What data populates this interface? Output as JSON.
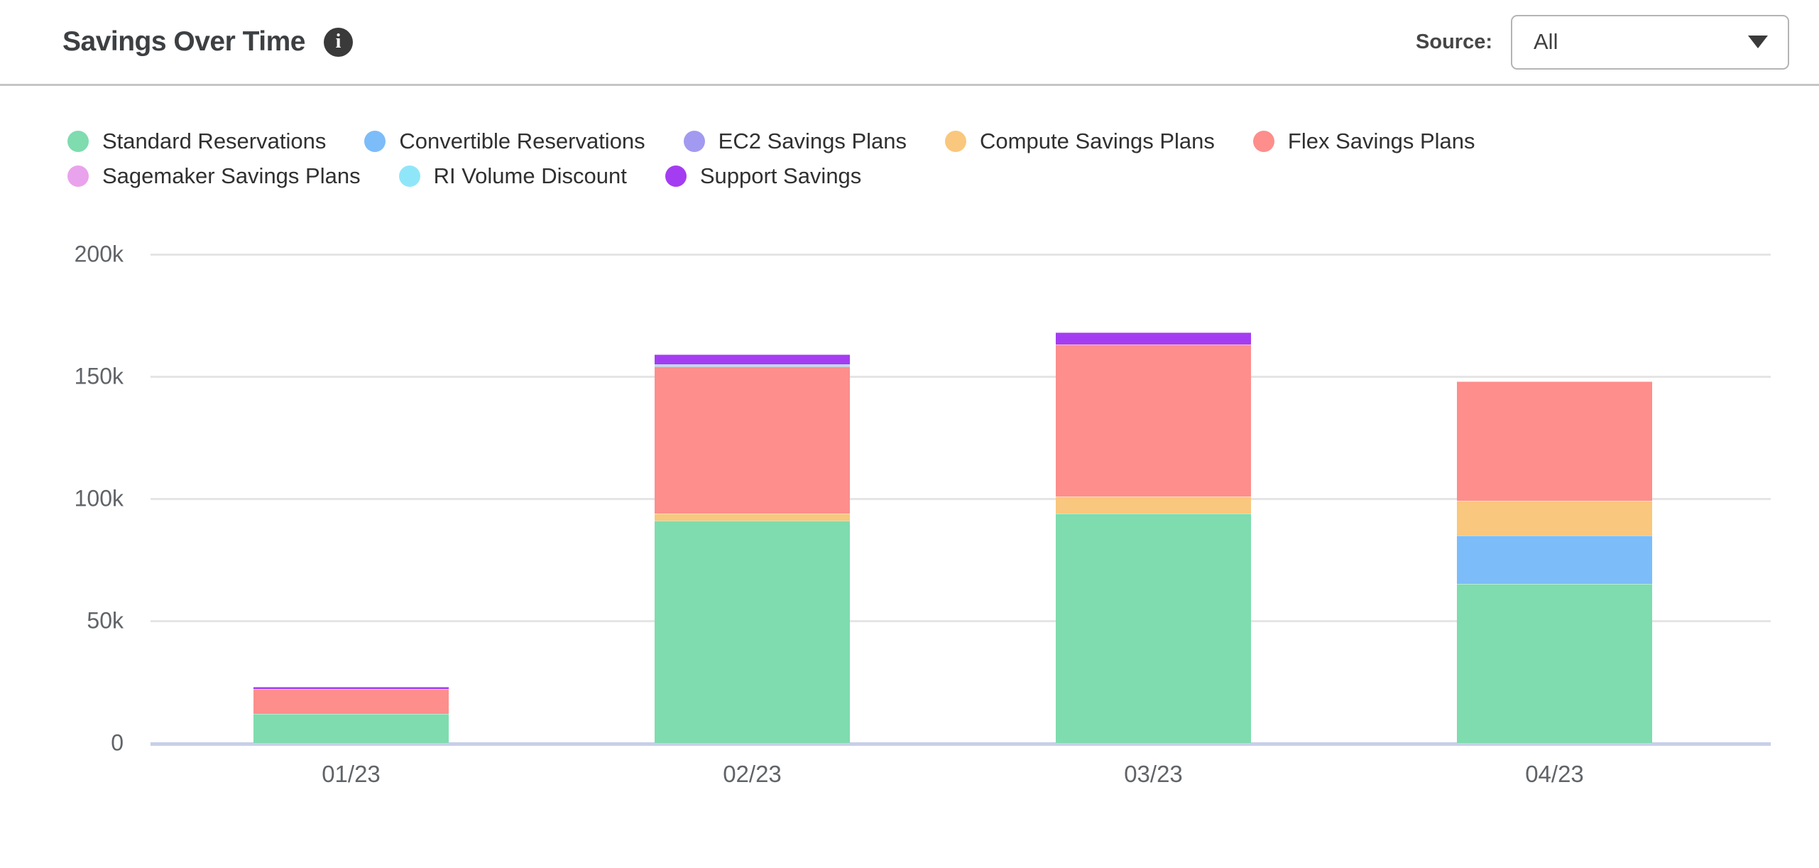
{
  "header": {
    "title": "Savings Over Time",
    "source_label": "Source:",
    "source_value": "All"
  },
  "icons": {
    "info": "i",
    "dropdown_caret": "chevron-down"
  },
  "colors": {
    "baseline": "#c8cfe9",
    "gridline": "#e5e5e5",
    "axis_text": "#606468"
  },
  "chart_data": {
    "type": "bar",
    "stacked": true,
    "title": "Savings Over Time",
    "categories": [
      "01/23",
      "02/23",
      "03/23",
      "04/23"
    ],
    "series": [
      {
        "name": "Standard Reservations",
        "color": "#7edcae",
        "values": [
          12000,
          91000,
          94000,
          65000
        ]
      },
      {
        "name": "Convertible Reservations",
        "color": "#7cbcf9",
        "values": [
          0,
          0,
          0,
          20000
        ]
      },
      {
        "name": "EC2 Savings Plans",
        "color": "#a29af0",
        "values": [
          0,
          0,
          0,
          0
        ]
      },
      {
        "name": "Compute Savings Plans",
        "color": "#f9c77d",
        "values": [
          0,
          3000,
          7000,
          14000
        ]
      },
      {
        "name": "Flex Savings Plans",
        "color": "#fd8e8c",
        "values": [
          10000,
          60000,
          62000,
          49000
        ]
      },
      {
        "name": "Sagemaker Savings Plans",
        "color": "#e9a3ec",
        "values": [
          0,
          0,
          0,
          0
        ]
      },
      {
        "name": "RI Volume Discount",
        "color": "#90e6f9",
        "values": [
          0,
          1000,
          0,
          0
        ]
      },
      {
        "name": "Support Savings",
        "color": "#a43df2",
        "values": [
          1000,
          4000,
          5000,
          0
        ]
      }
    ],
    "totals": [
      23000,
      159000,
      168000,
      148000
    ],
    "y_ticks": [
      "200k",
      "150k",
      "100k",
      "50k",
      "0"
    ],
    "y_tick_values": [
      200000,
      150000,
      100000,
      50000,
      0
    ],
    "ylim": [
      0,
      200000
    ],
    "grid": true,
    "legend_position": "top",
    "legend_rows": [
      5,
      3
    ],
    "stack_order": "legend-first-on-top"
  }
}
